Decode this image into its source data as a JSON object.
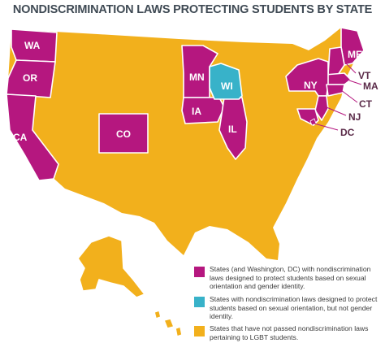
{
  "title": "NONDISCRIMINATION LAWS PROTECTING STUDENTS BY STATE",
  "colors": {
    "full_protection": "#b5177f",
    "orientation_only": "#38b2c9",
    "no_law": "#f2b01c"
  },
  "state_labels": {
    "wa": "WA",
    "or": "OR",
    "ca": "CA",
    "co": "CO",
    "mn": "MN",
    "wi": "WI",
    "ia": "IA",
    "il": "IL",
    "me": "ME",
    "vt": "VT",
    "ma": "MA",
    "ny": "NY",
    "ct": "CT",
    "nj": "NJ",
    "dc": "DC"
  },
  "legend": [
    {
      "category": "full_protection",
      "text": "States (and Washington, DC) with nondiscrimination laws designed to protect students based on sexual orientation and gender identity."
    },
    {
      "category": "orientation_only",
      "text": "States with nondiscrimination laws designed to protect students based on sexual orientation, but not gender identity."
    },
    {
      "category": "no_law",
      "text": "States that have not passed nondiscrimination laws pertaining to LGBT students."
    }
  ]
}
